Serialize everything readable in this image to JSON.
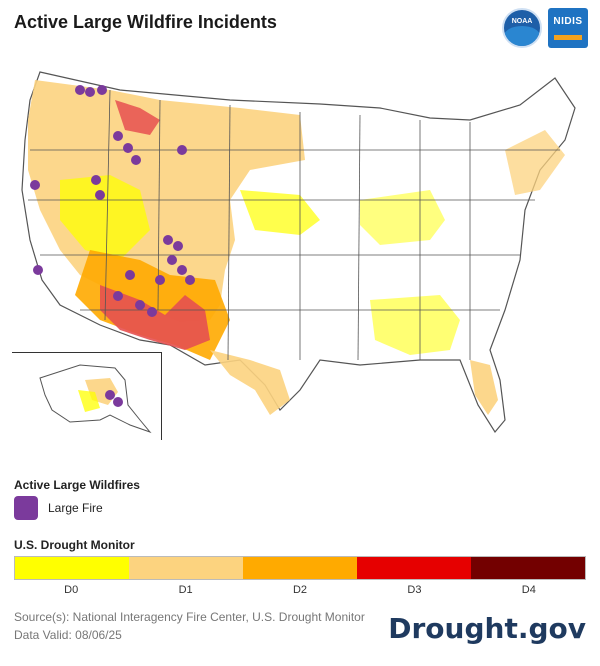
{
  "title": "Active Large Wildfire Incidents",
  "logos": {
    "noaa_text": "NOAA",
    "nidis_text": "NIDIS"
  },
  "map": {
    "region": "Contiguous U.S. with Alaska inset",
    "land_color": "#ffffff",
    "boundary_color": "#555555",
    "fire_color": "#7b3a9c"
  },
  "legend": {
    "fires_heading": "Active Large Wildfires",
    "fire_label": "Large Fire",
    "drought_heading": "U.S. Drought Monitor",
    "categories": [
      {
        "label": "D0",
        "color": "#ffff00"
      },
      {
        "label": "D1",
        "color": "#fcd37f"
      },
      {
        "label": "D2",
        "color": "#ffaa00"
      },
      {
        "label": "D3",
        "color": "#e60000"
      },
      {
        "label": "D4",
        "color": "#730000"
      }
    ]
  },
  "footer": {
    "source": "Source(s): National Interagency Fire Center, U.S. Drought Monitor",
    "valid": "Data Valid: 08/06/25",
    "brand": "Drought.gov"
  }
}
